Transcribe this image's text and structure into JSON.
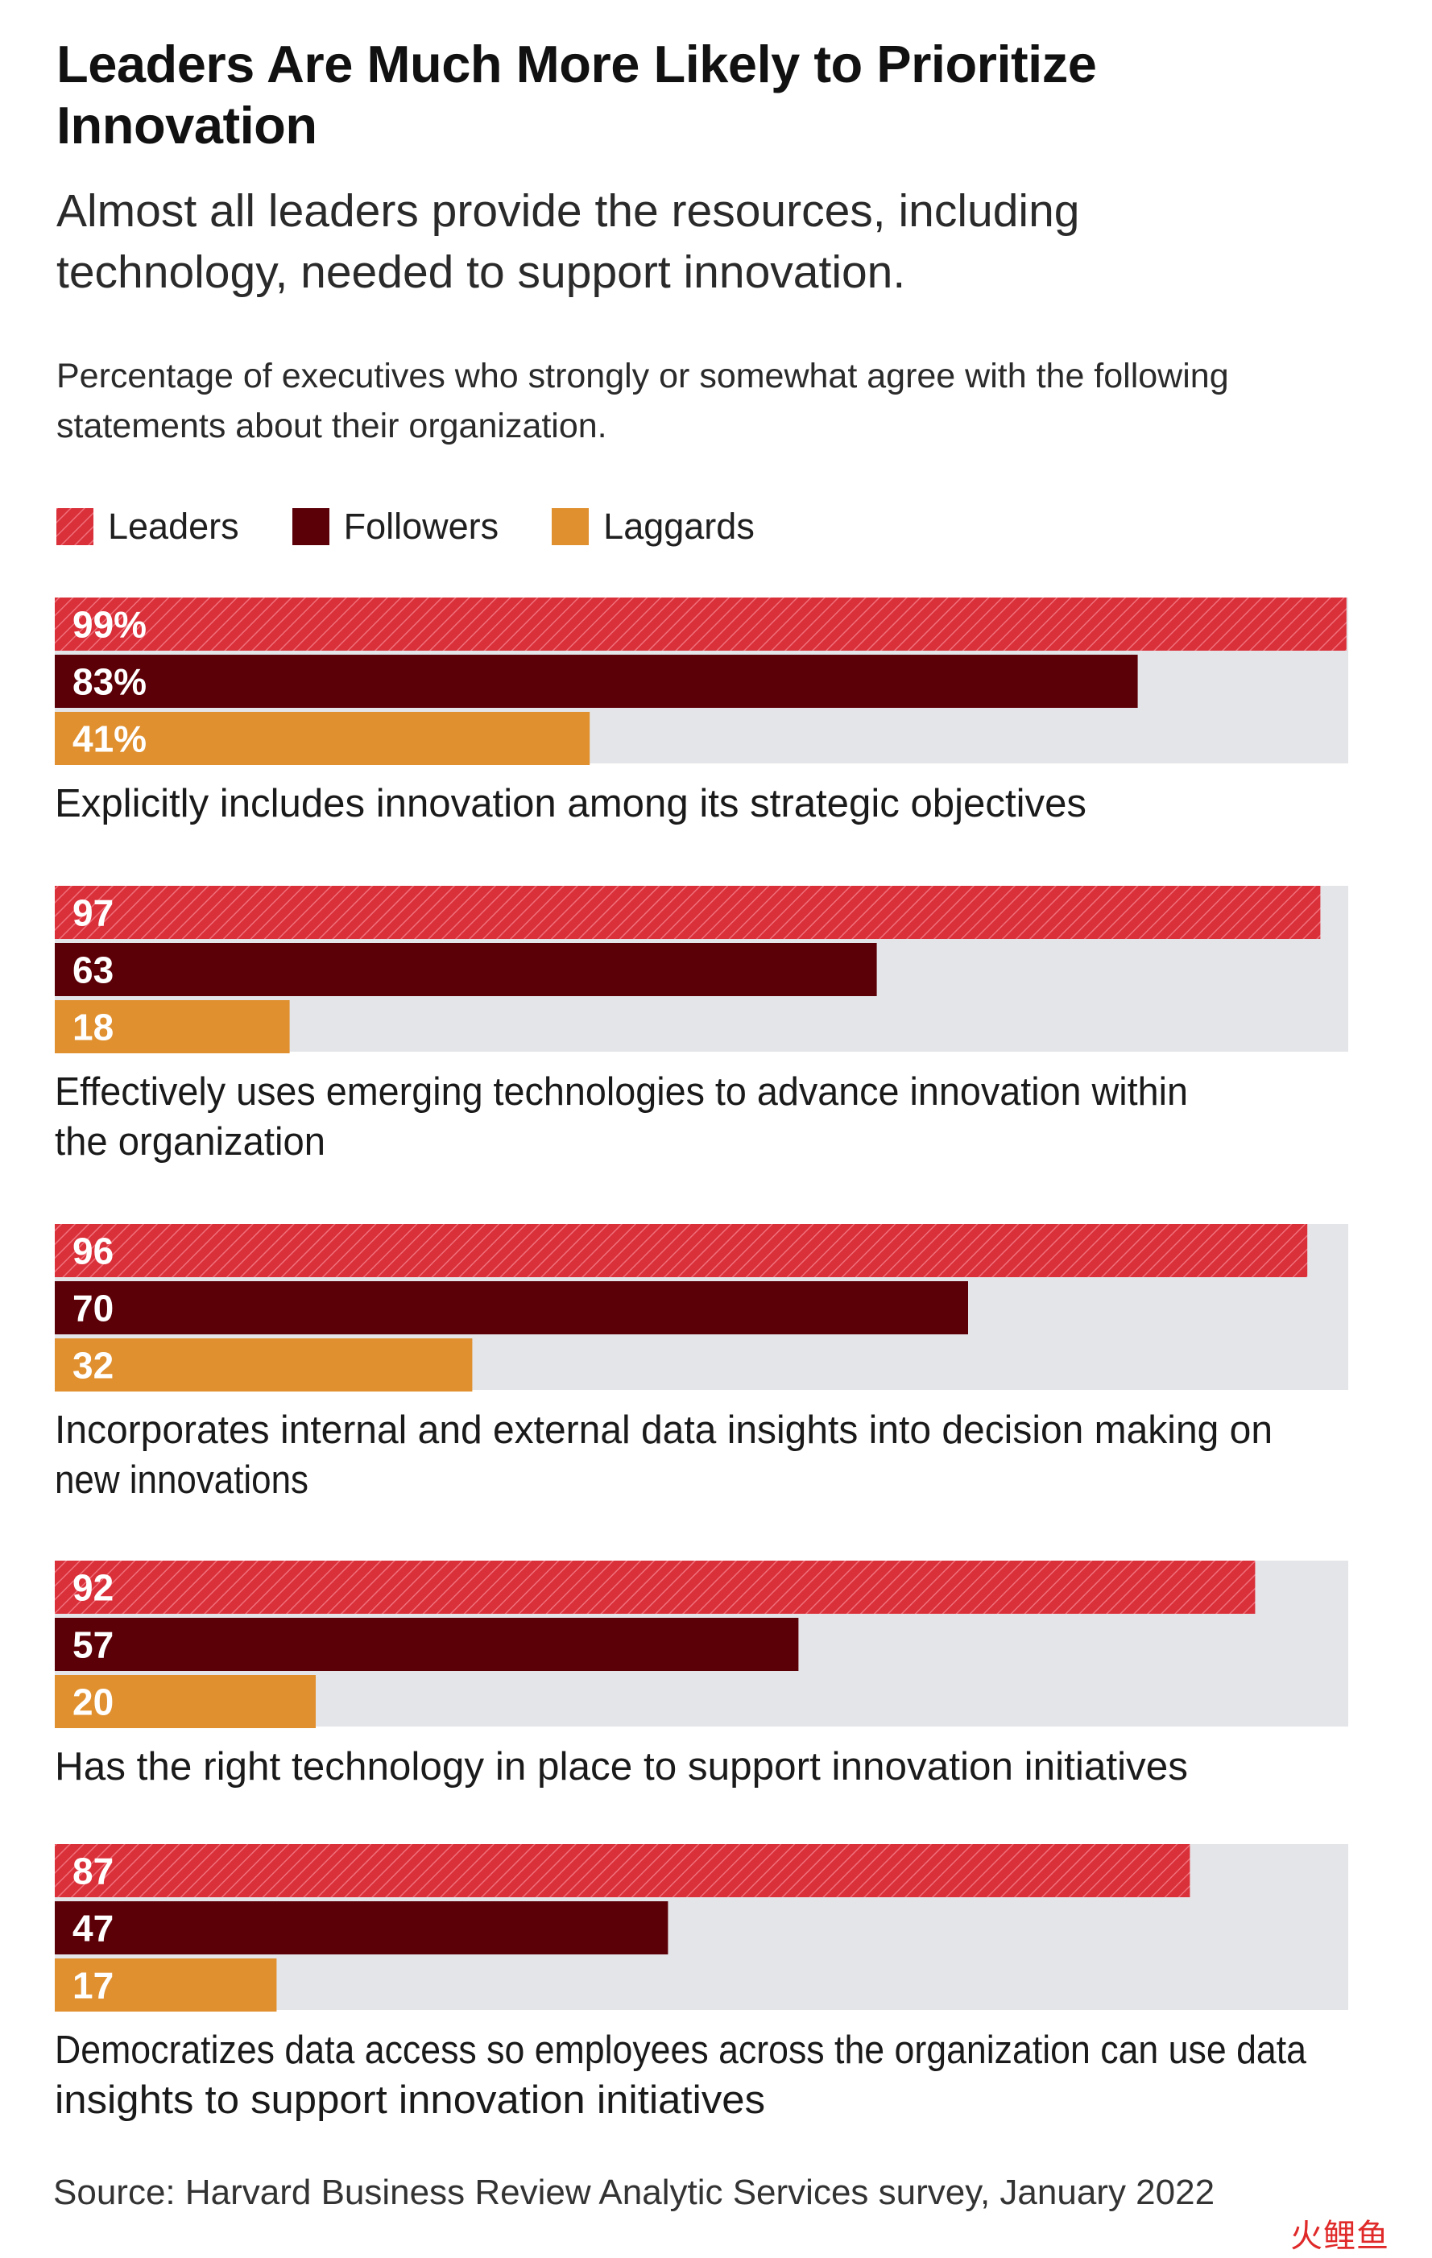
{
  "title": "Leaders Are Much More Likely to Prioritize Innovation",
  "subtitle": "Almost all leaders provide the resources, including technology, needed to support innovation.",
  "description": "Percentage of executives who strongly or somewhat agree with the following statements about their organization.",
  "source": "Source: Harvard Business Review Analytic Services survey, January 2022",
  "watermark": "火鲤鱼",
  "legend": [
    {
      "label": "Leaders"
    },
    {
      "label": "Followers"
    },
    {
      "label": "Laggards"
    }
  ],
  "colors": {
    "leaders": "#d9303a",
    "leaders_hatch": "#f0707a",
    "followers": "#5c0008",
    "laggards": "#e0902f",
    "track": "#e4e5e8",
    "bar_text": "#ffffff"
  },
  "chart_data": {
    "type": "bar",
    "orientation": "horizontal",
    "xlim": [
      0,
      100
    ],
    "series": [
      {
        "name": "Leaders",
        "values": [
          99,
          97,
          96,
          92,
          87
        ]
      },
      {
        "name": "Followers",
        "values": [
          83,
          63,
          70,
          57,
          47
        ]
      },
      {
        "name": "Laggards",
        "values": [
          41,
          18,
          32,
          20,
          17
        ]
      }
    ],
    "value_labels": [
      [
        "99%",
        "83%",
        "41%"
      ],
      [
        "97",
        "63",
        "18"
      ],
      [
        "96",
        "70",
        "32"
      ],
      [
        "92",
        "57",
        "20"
      ],
      [
        "87",
        "47",
        "17"
      ]
    ],
    "categories": [
      [
        "Explicitly includes innovation among its strategic objectives"
      ],
      [
        "Effectively uses emerging technologies to advance innovation within",
        "the organization"
      ],
      [
        "Incorporates internal and external data insights into decision making on",
        "new innovations"
      ],
      [
        "Has the right technology in place to support innovation initiatives"
      ],
      [
        "Democratizes data access so employees across the organization can use data",
        "insights to support innovation initiatives"
      ]
    ]
  }
}
